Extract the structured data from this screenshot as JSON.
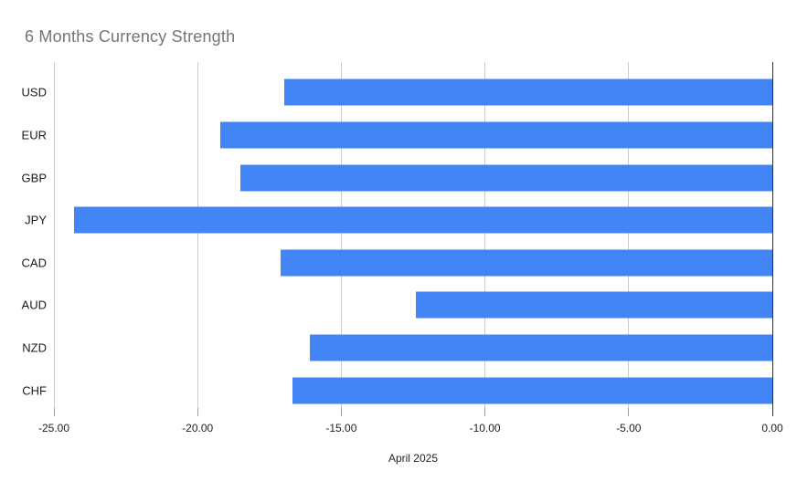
{
  "chart_data": {
    "type": "bar",
    "orientation": "horizontal",
    "title": "6 Months Currency Strength",
    "xlabel": "April 2025",
    "ylabel": "",
    "categories": [
      "USD",
      "EUR",
      "GBP",
      "JPY",
      "CAD",
      "AUD",
      "NZD",
      "CHF"
    ],
    "values": [
      -17.0,
      -19.2,
      -18.5,
      -24.3,
      -17.1,
      -12.4,
      -16.1,
      -16.7
    ],
    "xlim": [
      -25,
      0
    ],
    "xtick_values": [
      -25,
      -20,
      -15,
      -10,
      -5,
      0
    ],
    "xtick_labels": [
      "-25.00",
      "-20.00",
      "-15.00",
      "-10.00",
      "-5.00",
      "0.00"
    ],
    "grid": "vertical-only",
    "legend": "none",
    "colors": {
      "bar": "#4285f4",
      "title": "#757575",
      "gridline": "#cccccc",
      "zero_axis": "#333333",
      "tick_text": "#222222"
    }
  }
}
